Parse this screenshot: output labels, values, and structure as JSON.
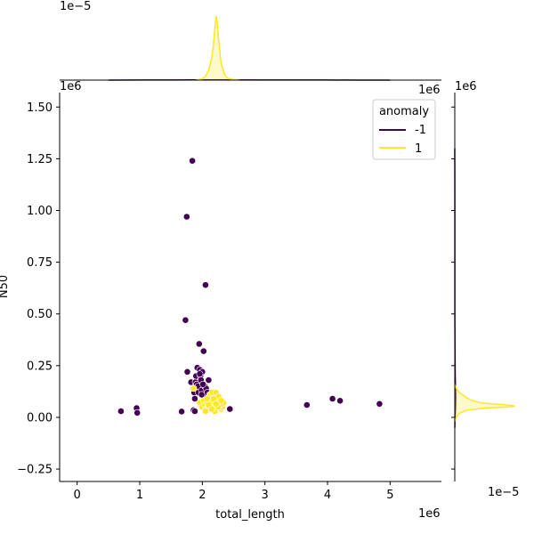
{
  "chart_data": {
    "type": "scatter",
    "title": "",
    "xlabel": "total_length",
    "ylabel": "N50",
    "x_scale_label": "1e6",
    "y_scale_label": "1e6",
    "top_marginal_scale_label": "1e−5",
    "right_marginal_scale_label": "1e−5",
    "xlim": [
      -0.28,
      5.82
    ],
    "ylim": [
      -0.31,
      1.57
    ],
    "x_ticks": [
      0,
      1,
      2,
      3,
      4,
      5
    ],
    "x_tick_labels": [
      "0",
      "1",
      "2",
      "3",
      "4",
      "5"
    ],
    "y_ticks": [
      -0.25,
      0,
      0.25,
      0.5,
      0.75,
      1,
      1.25,
      1.5
    ],
    "y_tick_labels": [
      "−0.25",
      "0.00",
      "0.25",
      "0.50",
      "0.75",
      "1.00",
      "1.25",
      "1.50"
    ],
    "grid": false,
    "legend": {
      "title": "anomaly",
      "placement": "top-right",
      "entries": [
        {
          "label": "-1",
          "color": "#440154"
        },
        {
          "label": "1",
          "color": "#fde725"
        }
      ]
    },
    "series": [
      {
        "name": "-1",
        "color": "#440154",
        "x": [
          0.7,
          0.95,
          0.96,
          1.67,
          1.73,
          1.75,
          1.76,
          1.82,
          1.84,
          1.85,
          1.86,
          1.87,
          1.88,
          1.89,
          1.9,
          1.91,
          1.92,
          1.93,
          1.94,
          1.95,
          1.96,
          1.97,
          1.98,
          1.99,
          2.0,
          2.01,
          2.02,
          2.03,
          2.04,
          2.05,
          2.06,
          2.08,
          2.1,
          2.12,
          2.2,
          2.44,
          3.67,
          4.08,
          4.2,
          4.83,
          1.99,
          1.96,
          2.01,
          1.88
        ],
        "y": [
          0.03,
          0.045,
          0.022,
          0.028,
          0.47,
          0.97,
          0.22,
          0.17,
          1.24,
          0.14,
          0.035,
          0.12,
          0.09,
          0.17,
          0.2,
          0.16,
          0.24,
          0.15,
          0.12,
          0.355,
          0.23,
          0.2,
          0.18,
          0.13,
          0.22,
          0.105,
          0.32,
          0.1,
          0.15,
          0.64,
          0.14,
          0.12,
          0.18,
          0.09,
          0.06,
          0.04,
          0.06,
          0.09,
          0.08,
          0.065,
          0.11,
          0.21,
          0.16,
          0.03
        ]
      },
      {
        "name": "1",
        "color": "#fde725",
        "x": [
          1.86,
          1.96,
          2.0,
          2.02,
          2.04,
          2.06,
          2.08,
          2.1,
          2.12,
          2.14,
          2.16,
          2.18,
          2.2,
          2.22,
          2.24,
          2.26,
          2.28,
          2.3,
          2.32,
          2.34,
          2.12,
          2.16,
          2.2,
          2.24,
          2.28,
          2.08,
          2.14,
          2.18,
          2.22,
          2.26,
          2.3,
          2.05,
          2.1,
          2.15,
          2.2,
          2.25,
          2.18,
          2.22
        ],
        "y": [
          0.14,
          0.07,
          0.05,
          0.08,
          0.06,
          0.04,
          0.07,
          0.05,
          0.09,
          0.06,
          0.04,
          0.08,
          0.1,
          0.05,
          0.07,
          0.06,
          0.09,
          0.04,
          0.05,
          0.07,
          0.11,
          0.12,
          0.03,
          0.08,
          0.06,
          0.09,
          0.07,
          0.05,
          0.12,
          0.1,
          0.08,
          0.03,
          0.06,
          0.04,
          0.07,
          0.05,
          0.09,
          0.065
        ]
      }
    ],
    "marginal_x": {
      "series": [
        {
          "name": "-1",
          "color": "#440154",
          "x": [
            0.5,
            1.0,
            1.5,
            1.8,
            2.0,
            2.2,
            2.5,
            3.0,
            3.5,
            4.0,
            4.5,
            5.0
          ],
          "density": [
            0.0,
            0.002,
            0.004,
            0.008,
            0.01,
            0.009,
            0.006,
            0.003,
            0.002,
            0.002,
            0.001,
            0.0
          ]
        },
        {
          "name": "1",
          "color": "#fde725",
          "x": [
            1.9,
            2.0,
            2.05,
            2.1,
            2.15,
            2.18,
            2.2,
            2.22,
            2.24,
            2.26,
            2.3,
            2.35,
            2.4,
            2.5,
            2.6
          ],
          "density": [
            0.0,
            0.05,
            0.15,
            0.4,
            0.9,
            1.5,
            2.1,
            2.6,
            2.3,
            1.6,
            0.7,
            0.25,
            0.08,
            0.02,
            0.0
          ]
        }
      ],
      "max_density": 2.7
    },
    "marginal_y": {
      "series": [
        {
          "name": "-1",
          "color": "#440154",
          "y": [
            -0.05,
            0.0,
            0.05,
            0.1,
            0.15,
            0.2,
            0.3,
            0.5,
            0.7,
            1.0,
            1.3
          ],
          "density": [
            0.0,
            0.02,
            0.05,
            0.06,
            0.05,
            0.03,
            0.015,
            0.008,
            0.005,
            0.003,
            0.0
          ]
        },
        {
          "name": "1",
          "color": "#fde725",
          "y": [
            -0.02,
            0.0,
            0.02,
            0.035,
            0.045,
            0.05,
            0.055,
            0.06,
            0.065,
            0.07,
            0.08,
            0.09,
            0.1,
            0.11,
            0.12,
            0.14,
            0.16
          ],
          "density": [
            0.0,
            0.1,
            0.3,
            0.8,
            2.0,
            3.6,
            4.0,
            3.5,
            2.5,
            1.8,
            1.2,
            0.9,
            0.7,
            0.5,
            0.3,
            0.1,
            0.0
          ]
        }
      ],
      "max_density": 4.2
    }
  }
}
